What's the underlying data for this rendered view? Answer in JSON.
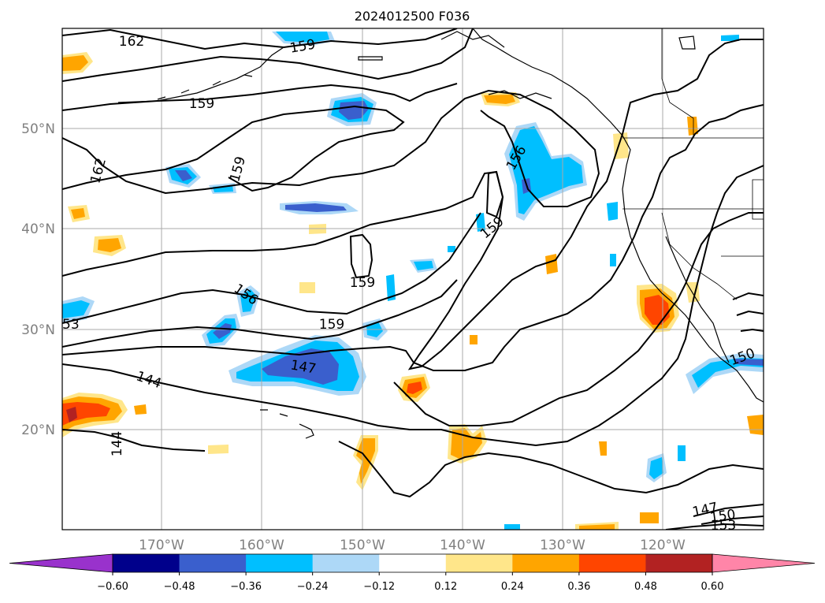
{
  "title": "2024012500 F036",
  "lat_labels": [
    "50°N",
    "40°N",
    "30°N",
    "20°N"
  ],
  "lon_labels": [
    "170°W",
    "160°W",
    "150°W",
    "140°W",
    "130°W",
    "120°W"
  ],
  "colorbar": {
    "ticks": [
      "−0.60",
      "−0.48",
      "−0.36",
      "−0.24",
      "−0.12",
      "0.12",
      "0.24",
      "0.36",
      "0.48",
      "0.60"
    ],
    "colors": [
      "#9932cc",
      "#00008b",
      "#3a5fcd",
      "#00bfff",
      "#add8f7",
      "#ffffff",
      "#ffe68a",
      "#ffa500",
      "#ff4500",
      "#b22222",
      "#ff85a8"
    ]
  },
  "contour_labels": [
    {
      "text": "162",
      "name": "label-162-top"
    },
    {
      "text": "159",
      "name": "label-159-top"
    },
    {
      "text": "159",
      "name": "label-159-upper"
    },
    {
      "text": "162",
      "name": "label-162-left"
    },
    {
      "text": "159",
      "name": "label-159-mid"
    },
    {
      "text": "156",
      "name": "label-156-ne"
    },
    {
      "text": "159",
      "name": "label-159-center"
    },
    {
      "text": "159",
      "name": "label-159-lower"
    },
    {
      "text": "159",
      "name": "label-159-low"
    },
    {
      "text": "156",
      "name": "label-156-w"
    },
    {
      "text": "53",
      "name": "label-153-edge"
    },
    {
      "text": "147",
      "name": "label-147-center"
    },
    {
      "text": "144",
      "name": "label-144-w"
    },
    {
      "text": "144",
      "name": "label-144-sw"
    },
    {
      "text": "150",
      "name": "label-150-e"
    },
    {
      "text": "147",
      "name": "label-147-se"
    },
    {
      "text": "150",
      "name": "label-150-se"
    },
    {
      "text": "153",
      "name": "label-153-se"
    }
  ]
}
